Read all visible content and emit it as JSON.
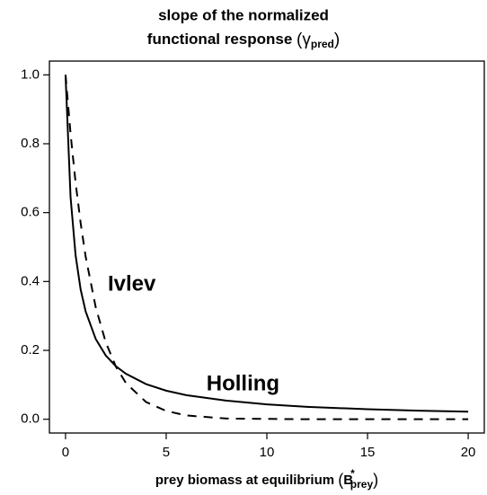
{
  "chart_data": {
    "type": "line",
    "title_lines": [
      "slope of the normalized",
      "functional response"
    ],
    "title_math": {
      "open": "(",
      "symbol": "γ",
      "sub": "pred",
      "close": ")"
    },
    "x_label": "prey biomass at equilibrium",
    "x_label_math": {
      "open": "(",
      "symbol": "B",
      "sup": "*",
      "sub": "prey",
      "close": ")"
    },
    "x": [
      0,
      0.25,
      0.5,
      0.75,
      1,
      1.5,
      2,
      2.5,
      3,
      4,
      5,
      6,
      8,
      10,
      12,
      15,
      17.5,
      20
    ],
    "series": [
      {
        "name": "Holling",
        "color": "#000000",
        "dash": false,
        "values": [
          1,
          0.645,
          0.476,
          0.377,
          0.313,
          0.233,
          0.185,
          0.154,
          0.132,
          0.102,
          0.083,
          0.07,
          0.054,
          0.043,
          0.036,
          0.029,
          0.025,
          0.022
        ]
      },
      {
        "name": "Ivlev",
        "color": "#000000",
        "dash": true,
        "values": [
          1,
          0.829,
          0.687,
          0.57,
          0.472,
          0.325,
          0.223,
          0.153,
          0.105,
          0.05,
          0.024,
          0.011,
          0.002,
          0.001,
          0,
          0,
          0,
          0
        ]
      }
    ],
    "annotations": [
      {
        "text": "Ivlev",
        "x": 2.1,
        "y": 0.39
      },
      {
        "text": "Holling",
        "x": 7,
        "y": 0.1
      }
    ],
    "xlim": [
      -0.8,
      20.8
    ],
    "ylim": [
      -0.04,
      1.04
    ],
    "xticks": [
      0,
      5,
      10,
      15,
      20
    ],
    "yticks": [
      {
        "value": 0,
        "label": "0.0"
      },
      0.2,
      0.4,
      0.6,
      0.8,
      {
        "value": 1,
        "label": "1.0"
      }
    ],
    "grid": false
  }
}
